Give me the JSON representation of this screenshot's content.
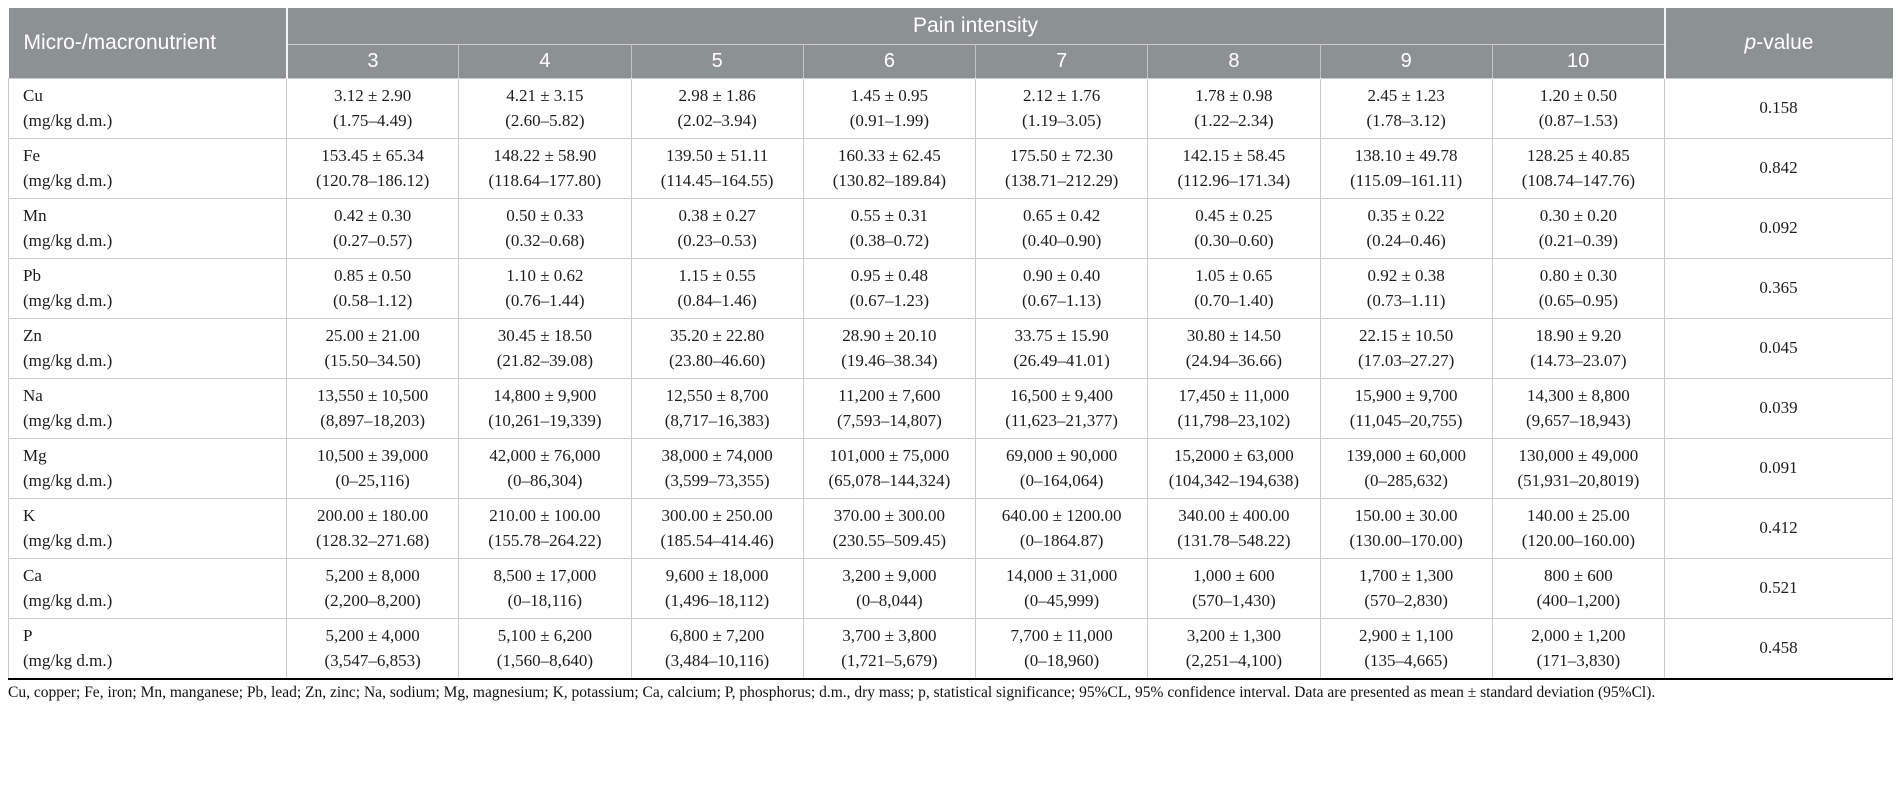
{
  "colors": {
    "header_bg": "#8c9192",
    "grid_line": "#c9cccc",
    "body_text": "#1c1c1c"
  },
  "table": {
    "corner_header": "Micro-/macronutrient",
    "group_header": "Pain intensity",
    "p_value_label_p": "p",
    "p_value_label_rest": "-value",
    "pain_levels": [
      "3",
      "4",
      "5",
      "6",
      "7",
      "8",
      "9",
      "10"
    ],
    "rows": [
      {
        "label": "Cu",
        "unit": "(mg/kg d.m.)",
        "p_value": "0.158",
        "values": [
          {
            "mean": "3.12 ± 2.90",
            "range": "(1.75–4.49)"
          },
          {
            "mean": "4.21 ± 3.15",
            "range": "(2.60–5.82)"
          },
          {
            "mean": "2.98 ± 1.86",
            "range": "(2.02–3.94)"
          },
          {
            "mean": "1.45 ± 0.95",
            "range": "(0.91–1.99)"
          },
          {
            "mean": "2.12 ± 1.76",
            "range": "(1.19–3.05)"
          },
          {
            "mean": "1.78 ± 0.98",
            "range": "(1.22–2.34)"
          },
          {
            "mean": "2.45 ± 1.23",
            "range": "(1.78–3.12)"
          },
          {
            "mean": "1.20 ± 0.50",
            "range": "(0.87–1.53)"
          }
        ]
      },
      {
        "label": "Fe",
        "unit": "(mg/kg d.m.)",
        "p_value": "0.842",
        "values": [
          {
            "mean": "153.45 ± 65.34",
            "range": "(120.78–186.12)"
          },
          {
            "mean": "148.22 ± 58.90",
            "range": "(118.64–177.80)"
          },
          {
            "mean": "139.50 ± 51.11",
            "range": "(114.45–164.55)"
          },
          {
            "mean": "160.33 ± 62.45",
            "range": "(130.82–189.84)"
          },
          {
            "mean": "175.50 ± 72.30",
            "range": "(138.71–212.29)"
          },
          {
            "mean": "142.15 ± 58.45",
            "range": "(112.96–171.34)"
          },
          {
            "mean": "138.10 ± 49.78",
            "range": "(115.09–161.11)"
          },
          {
            "mean": "128.25 ± 40.85",
            "range": "(108.74–147.76)"
          }
        ]
      },
      {
        "label": "Mn",
        "unit": "(mg/kg d.m.)",
        "p_value": "0.092",
        "values": [
          {
            "mean": "0.42 ± 0.30",
            "range": "(0.27–0.57)"
          },
          {
            "mean": "0.50 ± 0.33",
            "range": "(0.32–0.68)"
          },
          {
            "mean": "0.38 ± 0.27",
            "range": "(0.23–0.53)"
          },
          {
            "mean": "0.55 ± 0.31",
            "range": "(0.38–0.72)"
          },
          {
            "mean": "0.65 ± 0.42",
            "range": "(0.40–0.90)"
          },
          {
            "mean": "0.45 ± 0.25",
            "range": "(0.30–0.60)"
          },
          {
            "mean": "0.35 ± 0.22",
            "range": "(0.24–0.46)"
          },
          {
            "mean": "0.30 ± 0.20",
            "range": "(0.21–0.39)"
          }
        ]
      },
      {
        "label": "Pb",
        "unit": "(mg/kg d.m.)",
        "p_value": "0.365",
        "values": [
          {
            "mean": "0.85 ± 0.50",
            "range": "(0.58–1.12)"
          },
          {
            "mean": "1.10 ± 0.62",
            "range": "(0.76–1.44)"
          },
          {
            "mean": "1.15 ± 0.55",
            "range": "(0.84–1.46)"
          },
          {
            "mean": "0.95 ± 0.48",
            "range": "(0.67–1.23)"
          },
          {
            "mean": "0.90 ± 0.40",
            "range": "(0.67–1.13)"
          },
          {
            "mean": "1.05 ± 0.65",
            "range": "(0.70–1.40)"
          },
          {
            "mean": "0.92 ± 0.38",
            "range": "(0.73–1.11)"
          },
          {
            "mean": "0.80 ± 0.30",
            "range": "(0.65–0.95)"
          }
        ]
      },
      {
        "label": "Zn",
        "unit": "(mg/kg d.m.)",
        "p_value": "0.045",
        "values": [
          {
            "mean": "25.00 ± 21.00",
            "range": "(15.50–34.50)"
          },
          {
            "mean": "30.45 ± 18.50",
            "range": "(21.82–39.08)"
          },
          {
            "mean": "35.20 ± 22.80",
            "range": "(23.80–46.60)"
          },
          {
            "mean": "28.90 ± 20.10",
            "range": "(19.46–38.34)"
          },
          {
            "mean": "33.75 ± 15.90",
            "range": "(26.49–41.01)"
          },
          {
            "mean": "30.80 ± 14.50",
            "range": "(24.94–36.66)"
          },
          {
            "mean": "22.15 ± 10.50",
            "range": "(17.03–27.27)"
          },
          {
            "mean": "18.90 ± 9.20",
            "range": "(14.73–23.07)"
          }
        ]
      },
      {
        "label": "Na",
        "unit": "(mg/kg d.m.)",
        "p_value": "0.039",
        "values": [
          {
            "mean": "13,550 ± 10,500",
            "range": "(8,897–18,203)"
          },
          {
            "mean": "14,800 ± 9,900",
            "range": "(10,261–19,339)"
          },
          {
            "mean": "12,550 ± 8,700",
            "range": "(8,717–16,383)"
          },
          {
            "mean": "11,200 ± 7,600",
            "range": "(7,593–14,807)"
          },
          {
            "mean": "16,500 ± 9,400",
            "range": "(11,623–21,377)"
          },
          {
            "mean": "17,450 ± 11,000",
            "range": "(11,798–23,102)"
          },
          {
            "mean": "15,900 ± 9,700",
            "range": "(11,045–20,755)"
          },
          {
            "mean": "14,300 ± 8,800",
            "range": "(9,657–18,943)"
          }
        ]
      },
      {
        "label": "Mg",
        "unit": "(mg/kg d.m.)",
        "p_value": "0.091",
        "values": [
          {
            "mean": "10,500 ± 39,000",
            "range": "(0–25,116)"
          },
          {
            "mean": "42,000 ± 76,000",
            "range": "(0–86,304)"
          },
          {
            "mean": "38,000 ± 74,000",
            "range": "(3,599–73,355)"
          },
          {
            "mean": "101,000 ± 75,000",
            "range": "(65,078–144,324)"
          },
          {
            "mean": "69,000 ± 90,000",
            "range": "(0–164,064)"
          },
          {
            "mean": "15,2000 ± 63,000",
            "range": "(104,342–194,638)"
          },
          {
            "mean": "139,000 ± 60,000",
            "range": "(0–285,632)"
          },
          {
            "mean": "130,000 ± 49,000",
            "range": "(51,931–20,8019)"
          }
        ]
      },
      {
        "label": "K",
        "unit": "(mg/kg d.m.)",
        "p_value": "0.412",
        "values": [
          {
            "mean": "200.00 ± 180.00",
            "range": "(128.32–271.68)"
          },
          {
            "mean": "210.00 ± 100.00",
            "range": "(155.78–264.22)"
          },
          {
            "mean": "300.00 ± 250.00",
            "range": "(185.54–414.46)"
          },
          {
            "mean": "370.00 ± 300.00",
            "range": "(230.55–509.45)"
          },
          {
            "mean": "640.00 ± 1200.00",
            "range": "(0–1864.87)"
          },
          {
            "mean": "340.00 ± 400.00",
            "range": "(131.78–548.22)"
          },
          {
            "mean": "150.00 ± 30.00",
            "range": "(130.00–170.00)"
          },
          {
            "mean": "140.00 ± 25.00",
            "range": "(120.00–160.00)"
          }
        ]
      },
      {
        "label": "Ca",
        "unit": "(mg/kg d.m.)",
        "p_value": "0.521",
        "values": [
          {
            "mean": "5,200 ± 8,000",
            "range": "(2,200–8,200)"
          },
          {
            "mean": "8,500 ± 17,000",
            "range": "(0–18,116)"
          },
          {
            "mean": "9,600 ± 18,000",
            "range": "(1,496–18,112)"
          },
          {
            "mean": "3,200 ± 9,000",
            "range": "(0–8,044)"
          },
          {
            "mean": "14,000 ± 31,000",
            "range": "(0–45,999)"
          },
          {
            "mean": "1,000 ± 600",
            "range": "(570–1,430)"
          },
          {
            "mean": "1,700 ± 1,300",
            "range": "(570–2,830)"
          },
          {
            "mean": "800 ± 600",
            "range": "(400–1,200)"
          }
        ]
      },
      {
        "label": "P",
        "unit": "(mg/kg d.m.)",
        "p_value": "0.458",
        "values": [
          {
            "mean": "5,200 ± 4,000",
            "range": "(3,547–6,853)"
          },
          {
            "mean": "5,100 ± 6,200",
            "range": "(1,560–8,640)"
          },
          {
            "mean": "6,800 ± 7,200",
            "range": "(3,484–10,116)"
          },
          {
            "mean": "3,700 ± 3,800",
            "range": "(1,721–5,679)"
          },
          {
            "mean": "7,700 ± 11,000",
            "range": "(0–18,960)"
          },
          {
            "mean": "3,200 ± 1,300",
            "range": "(2,251–4,100)"
          },
          {
            "mean": "2,900 ± 1,100",
            "range": "(135–4,665)"
          },
          {
            "mean": "2,000 ± 1,200",
            "range": "(171–3,830)"
          }
        ]
      }
    ]
  },
  "footnote": "Cu, copper; Fe, iron; Mn, manganese; Pb, lead; Zn, zinc; Na, sodium; Mg, magnesium; K, potassium; Ca, calcium; P, phosphorus; d.m., dry mass; p, statistical significance; 95%CL, 95% confidence interval. Data are presented as mean ± standard deviation (95%Cl)."
}
